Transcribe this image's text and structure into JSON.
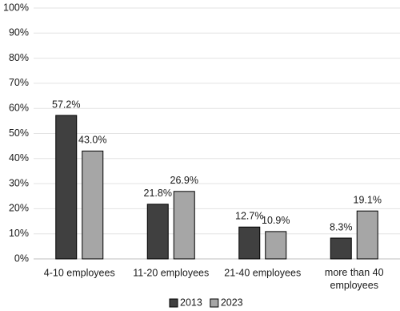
{
  "chart_data": {
    "type": "bar",
    "categories": [
      "4-10 employees",
      "11-20 employees",
      "21-40 employees",
      "more than 40 employees"
    ],
    "series": [
      {
        "name": "2013",
        "color": "#404040",
        "values": [
          57.2,
          21.8,
          12.7,
          8.3
        ],
        "value_labels": [
          "57.2%",
          "21.8%",
          "12.7%",
          "8.3%"
        ]
      },
      {
        "name": "2023",
        "color": "#a6a6a6",
        "values": [
          43.0,
          26.9,
          10.9,
          19.1
        ],
        "value_labels": [
          "43.0%",
          "26.9%",
          "10.9%",
          "19.1%"
        ]
      }
    ],
    "ylim": [
      0,
      100
    ],
    "yticks": [
      {
        "value": 0,
        "label": "0%"
      },
      {
        "value": 10,
        "label": "10%"
      },
      {
        "value": 20,
        "label": "20%"
      },
      {
        "value": 30,
        "label": "30%"
      },
      {
        "value": 40,
        "label": "40%"
      },
      {
        "value": 50,
        "label": "50%"
      },
      {
        "value": 60,
        "label": "60%"
      },
      {
        "value": 70,
        "label": "70%"
      },
      {
        "value": 80,
        "label": "80%"
      },
      {
        "value": 90,
        "label": "90%"
      },
      {
        "value": 100,
        "label": "100%"
      }
    ],
    "grid": true,
    "legend": "bottom"
  }
}
